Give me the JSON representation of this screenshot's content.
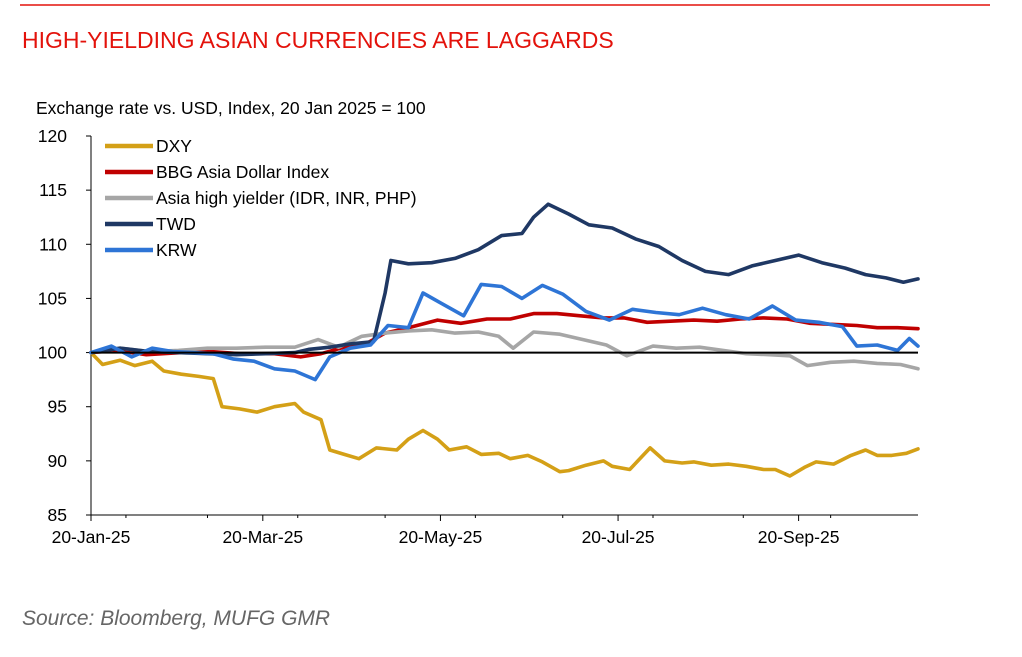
{
  "chart_data": {
    "type": "line",
    "title": "HIGH-YIELDING ASIAN CURRENCIES ARE LAGGARDS",
    "subtitle": "Exchange rate vs. USD, Index, 20 Jan 2025 = 100",
    "source": "Source: Bloomberg, MUFG GMR",
    "ylim": [
      85,
      120
    ],
    "yticks": [
      85,
      90,
      95,
      100,
      105,
      110,
      115,
      120
    ],
    "ytick_labels": [
      "85",
      "90",
      "95",
      "100",
      "105",
      "110",
      "115",
      "120"
    ],
    "x_start": "2025-01-20",
    "x_end": "2025-10-31",
    "xticks": [
      {
        "date": "2025-01-20",
        "label": "20-Jan-25"
      },
      {
        "date": "2025-03-20",
        "label": "20-Mar-25"
      },
      {
        "date": "2025-05-20",
        "label": "20-May-25"
      },
      {
        "date": "2025-07-20",
        "label": "20-Jul-25"
      },
      {
        "date": "2025-09-20",
        "label": "20-Sep-25"
      }
    ],
    "reference_line": 100,
    "legend_position": "top-left",
    "grid": false,
    "series": [
      {
        "name": "DXY",
        "color": "#d4a017",
        "points": [
          [
            "2025-01-20",
            100.0
          ],
          [
            "2025-01-24",
            98.9
          ],
          [
            "2025-01-30",
            99.3
          ],
          [
            "2025-02-04",
            98.8
          ],
          [
            "2025-02-10",
            99.2
          ],
          [
            "2025-02-14",
            98.3
          ],
          [
            "2025-02-20",
            98.0
          ],
          [
            "2025-02-26",
            97.8
          ],
          [
            "2025-03-03",
            97.6
          ],
          [
            "2025-03-06",
            95.0
          ],
          [
            "2025-03-12",
            94.8
          ],
          [
            "2025-03-18",
            94.5
          ],
          [
            "2025-03-24",
            95.0
          ],
          [
            "2025-03-31",
            95.3
          ],
          [
            "2025-04-03",
            94.5
          ],
          [
            "2025-04-09",
            93.8
          ],
          [
            "2025-04-12",
            91.0
          ],
          [
            "2025-04-17",
            90.6
          ],
          [
            "2025-04-22",
            90.2
          ],
          [
            "2025-04-28",
            91.2
          ],
          [
            "2025-05-05",
            91.0
          ],
          [
            "2025-05-09",
            92.0
          ],
          [
            "2025-05-14",
            92.8
          ],
          [
            "2025-05-19",
            92.0
          ],
          [
            "2025-05-23",
            91.0
          ],
          [
            "2025-05-29",
            91.3
          ],
          [
            "2025-06-03",
            90.6
          ],
          [
            "2025-06-09",
            90.7
          ],
          [
            "2025-06-13",
            90.2
          ],
          [
            "2025-06-19",
            90.5
          ],
          [
            "2025-06-24",
            89.9
          ],
          [
            "2025-06-30",
            89.0
          ],
          [
            "2025-07-03",
            89.1
          ],
          [
            "2025-07-09",
            89.6
          ],
          [
            "2025-07-15",
            90.0
          ],
          [
            "2025-07-18",
            89.5
          ],
          [
            "2025-07-24",
            89.2
          ],
          [
            "2025-07-31",
            91.2
          ],
          [
            "2025-08-05",
            90.0
          ],
          [
            "2025-08-11",
            89.8
          ],
          [
            "2025-08-15",
            89.9
          ],
          [
            "2025-08-21",
            89.6
          ],
          [
            "2025-08-27",
            89.7
          ],
          [
            "2025-09-02",
            89.5
          ],
          [
            "2025-09-08",
            89.2
          ],
          [
            "2025-09-12",
            89.2
          ],
          [
            "2025-09-17",
            88.6
          ],
          [
            "2025-09-22",
            89.4
          ],
          [
            "2025-09-26",
            89.9
          ],
          [
            "2025-10-02",
            89.7
          ],
          [
            "2025-10-08",
            90.5
          ],
          [
            "2025-10-13",
            91.0
          ],
          [
            "2025-10-17",
            90.5
          ],
          [
            "2025-10-22",
            90.5
          ],
          [
            "2025-10-27",
            90.7
          ],
          [
            "2025-10-31",
            91.1
          ]
        ]
      },
      {
        "name": "BBG Asia Dollar Index",
        "color": "#c00000",
        "points": [
          [
            "2025-01-20",
            100.0
          ],
          [
            "2025-01-29",
            100.2
          ],
          [
            "2025-02-08",
            99.8
          ],
          [
            "2025-02-20",
            100.0
          ],
          [
            "2025-03-02",
            100.1
          ],
          [
            "2025-03-12",
            99.9
          ],
          [
            "2025-03-24",
            99.9
          ],
          [
            "2025-04-02",
            99.6
          ],
          [
            "2025-04-09",
            99.9
          ],
          [
            "2025-04-17",
            100.5
          ],
          [
            "2025-04-25",
            100.9
          ],
          [
            "2025-05-01",
            101.8
          ],
          [
            "2025-05-09",
            102.3
          ],
          [
            "2025-05-19",
            103.0
          ],
          [
            "2025-05-27",
            102.7
          ],
          [
            "2025-06-05",
            103.1
          ],
          [
            "2025-06-13",
            103.1
          ],
          [
            "2025-06-21",
            103.6
          ],
          [
            "2025-06-29",
            103.6
          ],
          [
            "2025-07-07",
            103.4
          ],
          [
            "2025-07-15",
            103.2
          ],
          [
            "2025-07-22",
            103.2
          ],
          [
            "2025-07-30",
            102.8
          ],
          [
            "2025-08-07",
            102.9
          ],
          [
            "2025-08-15",
            103.0
          ],
          [
            "2025-08-23",
            102.9
          ],
          [
            "2025-08-31",
            103.1
          ],
          [
            "2025-09-08",
            103.2
          ],
          [
            "2025-09-16",
            103.1
          ],
          [
            "2025-09-24",
            102.7
          ],
          [
            "2025-10-02",
            102.6
          ],
          [
            "2025-10-10",
            102.5
          ],
          [
            "2025-10-17",
            102.3
          ],
          [
            "2025-10-24",
            102.3
          ],
          [
            "2025-10-31",
            102.2
          ]
        ]
      },
      {
        "name": "Asia high yielder (IDR, INR, PHP)",
        "color": "#a6a6a6",
        "points": [
          [
            "2025-01-20",
            100.0
          ],
          [
            "2025-01-30",
            100.4
          ],
          [
            "2025-02-09",
            100.1
          ],
          [
            "2025-02-19",
            100.2
          ],
          [
            "2025-03-01",
            100.4
          ],
          [
            "2025-03-11",
            100.4
          ],
          [
            "2025-03-21",
            100.5
          ],
          [
            "2025-03-31",
            100.5
          ],
          [
            "2025-04-08",
            101.2
          ],
          [
            "2025-04-15",
            100.5
          ],
          [
            "2025-04-23",
            101.5
          ],
          [
            "2025-05-01",
            101.8
          ],
          [
            "2025-05-09",
            102.0
          ],
          [
            "2025-05-17",
            102.1
          ],
          [
            "2025-05-25",
            101.8
          ],
          [
            "2025-06-02",
            101.9
          ],
          [
            "2025-06-09",
            101.5
          ],
          [
            "2025-06-14",
            100.4
          ],
          [
            "2025-06-21",
            101.9
          ],
          [
            "2025-06-30",
            101.7
          ],
          [
            "2025-07-08",
            101.2
          ],
          [
            "2025-07-16",
            100.7
          ],
          [
            "2025-07-23",
            99.7
          ],
          [
            "2025-08-01",
            100.6
          ],
          [
            "2025-08-09",
            100.4
          ],
          [
            "2025-08-17",
            100.5
          ],
          [
            "2025-08-25",
            100.2
          ],
          [
            "2025-09-02",
            99.9
          ],
          [
            "2025-09-10",
            99.8
          ],
          [
            "2025-09-17",
            99.7
          ],
          [
            "2025-09-23",
            98.8
          ],
          [
            "2025-10-01",
            99.1
          ],
          [
            "2025-10-09",
            99.2
          ],
          [
            "2025-10-17",
            99.0
          ],
          [
            "2025-10-25",
            98.9
          ],
          [
            "2025-10-31",
            98.5
          ]
        ]
      },
      {
        "name": "TWD",
        "color": "#1f3864",
        "points": [
          [
            "2025-01-20",
            100.0
          ],
          [
            "2025-01-30",
            100.4
          ],
          [
            "2025-02-09",
            100.1
          ],
          [
            "2025-02-19",
            100.0
          ],
          [
            "2025-03-01",
            99.9
          ],
          [
            "2025-03-11",
            99.8
          ],
          [
            "2025-03-21",
            99.9
          ],
          [
            "2025-03-31",
            100.0
          ],
          [
            "2025-04-05",
            100.3
          ],
          [
            "2025-04-12",
            100.5
          ],
          [
            "2025-04-19",
            100.8
          ],
          [
            "2025-04-27",
            101.0
          ],
          [
            "2025-05-01",
            105.5
          ],
          [
            "2025-05-03",
            108.5
          ],
          [
            "2025-05-09",
            108.2
          ],
          [
            "2025-05-17",
            108.3
          ],
          [
            "2025-05-25",
            108.7
          ],
          [
            "2025-06-02",
            109.5
          ],
          [
            "2025-06-10",
            110.8
          ],
          [
            "2025-06-17",
            111.0
          ],
          [
            "2025-06-21",
            112.5
          ],
          [
            "2025-06-26",
            113.7
          ],
          [
            "2025-07-03",
            112.8
          ],
          [
            "2025-07-10",
            111.8
          ],
          [
            "2025-07-18",
            111.5
          ],
          [
            "2025-07-26",
            110.5
          ],
          [
            "2025-08-03",
            109.8
          ],
          [
            "2025-08-11",
            108.5
          ],
          [
            "2025-08-19",
            107.5
          ],
          [
            "2025-08-27",
            107.2
          ],
          [
            "2025-09-04",
            108.0
          ],
          [
            "2025-09-12",
            108.5
          ],
          [
            "2025-09-20",
            109.0
          ],
          [
            "2025-09-28",
            108.3
          ],
          [
            "2025-10-06",
            107.8
          ],
          [
            "2025-10-13",
            107.2
          ],
          [
            "2025-10-20",
            106.9
          ],
          [
            "2025-10-26",
            106.5
          ],
          [
            "2025-10-31",
            106.8
          ]
        ]
      },
      {
        "name": "KRW",
        "color": "#2e75d6",
        "points": [
          [
            "2025-01-20",
            100.0
          ],
          [
            "2025-01-27",
            100.6
          ],
          [
            "2025-02-03",
            99.6
          ],
          [
            "2025-02-10",
            100.4
          ],
          [
            "2025-02-17",
            100.1
          ],
          [
            "2025-02-24",
            100.0
          ],
          [
            "2025-03-03",
            99.9
          ],
          [
            "2025-03-10",
            99.4
          ],
          [
            "2025-03-17",
            99.2
          ],
          [
            "2025-03-24",
            98.5
          ],
          [
            "2025-03-31",
            98.3
          ],
          [
            "2025-04-07",
            97.5
          ],
          [
            "2025-04-12",
            99.6
          ],
          [
            "2025-04-19",
            100.4
          ],
          [
            "2025-04-26",
            100.7
          ],
          [
            "2025-05-02",
            102.5
          ],
          [
            "2025-05-09",
            102.3
          ],
          [
            "2025-05-14",
            105.5
          ],
          [
            "2025-05-20",
            104.6
          ],
          [
            "2025-05-28",
            103.4
          ],
          [
            "2025-06-03",
            106.3
          ],
          [
            "2025-06-10",
            106.1
          ],
          [
            "2025-06-17",
            105.0
          ],
          [
            "2025-06-24",
            106.2
          ],
          [
            "2025-07-01",
            105.4
          ],
          [
            "2025-07-09",
            103.8
          ],
          [
            "2025-07-17",
            103.0
          ],
          [
            "2025-07-25",
            104.0
          ],
          [
            "2025-08-02",
            103.7
          ],
          [
            "2025-08-10",
            103.5
          ],
          [
            "2025-08-18",
            104.1
          ],
          [
            "2025-08-26",
            103.5
          ],
          [
            "2025-09-03",
            103.1
          ],
          [
            "2025-09-11",
            104.3
          ],
          [
            "2025-09-19",
            103.0
          ],
          [
            "2025-09-27",
            102.8
          ],
          [
            "2025-10-05",
            102.4
          ],
          [
            "2025-10-10",
            100.6
          ],
          [
            "2025-10-17",
            100.7
          ],
          [
            "2025-10-24",
            100.2
          ],
          [
            "2025-10-28",
            101.3
          ],
          [
            "2025-10-31",
            100.6
          ]
        ]
      }
    ]
  }
}
